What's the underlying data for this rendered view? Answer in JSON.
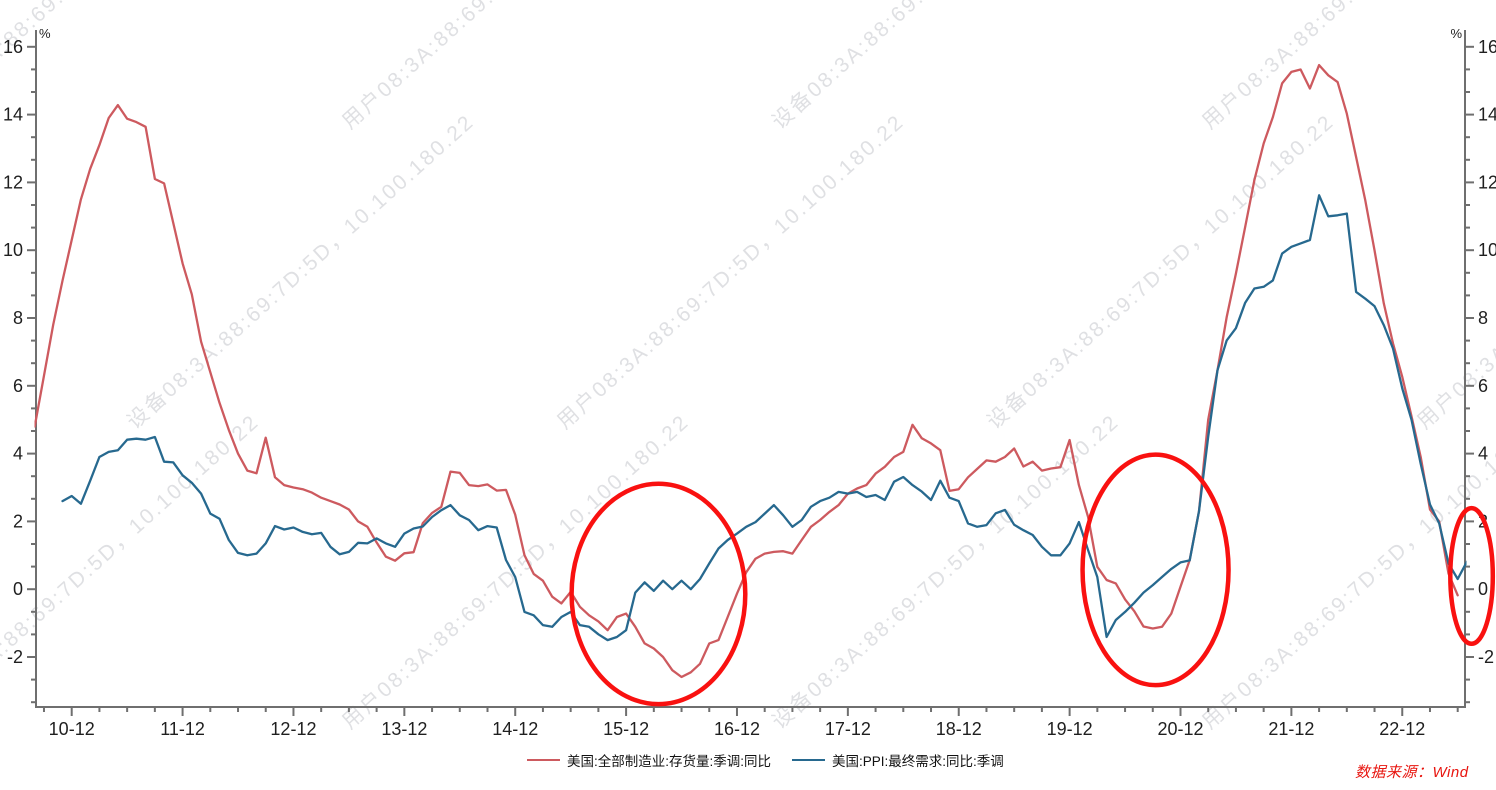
{
  "watermark": {
    "lines": [
      "设备08:3A:88:69:7D:5D，10.100.180.22",
      "用户08:3A:88:69:7D:5D，10.100.180.22"
    ],
    "color": "#b7bac0"
  },
  "source_note": "数据来源：Wind",
  "legend": {
    "items": [
      {
        "label": "美国:全部制造业:存货量:季调:同比",
        "color": "#cd5a5f"
      },
      {
        "label": "美国:PPI:最终需求:同比:季调",
        "color": "#27698f"
      }
    ]
  },
  "chart_data": {
    "type": "line",
    "title": "",
    "unit_label": "%",
    "frequency": "monthly",
    "start_month": "2010-08",
    "x_tick_labels": [
      "10-12",
      "11-12",
      "12-12",
      "13-12",
      "14-12",
      "15-12",
      "16-12",
      "17-12",
      "18-12",
      "19-12",
      "20-12",
      "21-12",
      "22-12"
    ],
    "y_major_ticks": [
      -2,
      0,
      2,
      4,
      6,
      8,
      10,
      12,
      14,
      16
    ],
    "ylim": [
      -3.47,
      16.5
    ],
    "grid": false,
    "legend_position": "bottom-center",
    "axis_color": "#6f6f6f",
    "tick_label_color": "#1f1f1f",
    "annotation_color": "#f91110",
    "series": [
      {
        "name": "美国:全部制造业:存货量:季调:同比",
        "color": "#cd5a5f",
        "values": [
          4.8,
          6.3,
          7.8,
          9.1,
          10.3,
          11.5,
          12.4,
          13.1,
          13.9,
          14.28,
          13.88,
          13.78,
          13.64,
          12.1,
          11.97,
          10.8,
          9.61,
          8.7,
          7.3,
          6.4,
          5.5,
          4.7,
          4.0,
          3.5,
          3.42,
          4.47,
          3.3,
          3.07,
          3.0,
          2.95,
          2.85,
          2.7,
          2.6,
          2.5,
          2.35,
          2.0,
          1.84,
          1.38,
          0.96,
          0.84,
          1.06,
          1.09,
          1.95,
          2.25,
          2.43,
          3.47,
          3.43,
          3.07,
          3.04,
          3.09,
          2.91,
          2.93,
          2.2,
          1.0,
          0.45,
          0.25,
          -0.22,
          -0.42,
          -0.08,
          -0.52,
          -0.77,
          -0.95,
          -1.21,
          -0.82,
          -0.72,
          -1.11,
          -1.6,
          -1.75,
          -2.0,
          -2.39,
          -2.59,
          -2.45,
          -2.2,
          -1.6,
          -1.5,
          -0.82,
          -0.13,
          0.5,
          0.9,
          1.05,
          1.1,
          1.12,
          1.05,
          1.45,
          1.84,
          2.04,
          2.28,
          2.48,
          2.82,
          2.97,
          3.07,
          3.41,
          3.61,
          3.9,
          4.05,
          4.85,
          4.45,
          4.3,
          4.1,
          2.9,
          2.95,
          3.3,
          3.55,
          3.8,
          3.76,
          3.9,
          4.15,
          3.62,
          3.76,
          3.5,
          3.56,
          3.6,
          4.4,
          3.07,
          2.13,
          0.66,
          0.27,
          0.17,
          -0.3,
          -0.65,
          -1.1,
          -1.16,
          -1.11,
          -0.72,
          0.07,
          0.86,
          2.3,
          5.0,
          6.46,
          8.03,
          9.31,
          10.69,
          12.07,
          13.15,
          13.93,
          14.92,
          15.26,
          15.33,
          14.77,
          15.46,
          15.16,
          14.96,
          14.03,
          12.75,
          11.47,
          10.0,
          8.43,
          7.25,
          6.26,
          5.1,
          3.9,
          2.35,
          2.0,
          0.46,
          -0.18,
          null
        ]
      },
      {
        "name": "美国:PPI:最终需求:同比:季调",
        "color": "#27698f",
        "values": [
          null,
          null,
          null,
          2.6,
          2.75,
          2.52,
          3.2,
          3.9,
          4.05,
          4.1,
          4.41,
          4.44,
          4.41,
          4.49,
          3.76,
          3.74,
          3.36,
          3.14,
          2.82,
          2.23,
          2.08,
          1.45,
          1.07,
          1.0,
          1.05,
          1.35,
          1.86,
          1.76,
          1.82,
          1.69,
          1.62,
          1.66,
          1.25,
          1.03,
          1.1,
          1.37,
          1.35,
          1.5,
          1.35,
          1.25,
          1.64,
          1.79,
          1.85,
          2.13,
          2.33,
          2.48,
          2.18,
          2.04,
          1.74,
          1.86,
          1.82,
          0.86,
          0.36,
          -0.67,
          -0.77,
          -1.06,
          -1.11,
          -0.82,
          -0.67,
          -1.06,
          -1.11,
          -1.33,
          -1.5,
          -1.41,
          -1.21,
          -0.1,
          0.2,
          -0.05,
          0.25,
          0.0,
          0.25,
          0.0,
          0.3,
          0.76,
          1.2,
          1.45,
          1.64,
          1.84,
          1.98,
          2.23,
          2.48,
          2.18,
          1.84,
          2.04,
          2.43,
          2.6,
          2.7,
          2.87,
          2.82,
          2.87,
          2.72,
          2.78,
          2.63,
          3.17,
          3.31,
          3.07,
          2.88,
          2.63,
          3.2,
          2.7,
          2.6,
          1.94,
          1.84,
          1.89,
          2.24,
          2.34,
          1.9,
          1.74,
          1.6,
          1.25,
          1.0,
          1.0,
          1.35,
          1.98,
          1.15,
          0.36,
          -1.41,
          -0.91,
          -0.67,
          -0.4,
          -0.1,
          0.12,
          0.36,
          0.6,
          0.79,
          0.85,
          2.3,
          4.5,
          6.46,
          7.34,
          7.7,
          8.45,
          8.87,
          8.92,
          9.11,
          9.9,
          10.1,
          10.2,
          10.3,
          11.62,
          11.0,
          11.03,
          11.08,
          8.77,
          8.57,
          8.35,
          7.79,
          7.1,
          5.92,
          5.0,
          3.7,
          2.5,
          1.94,
          0.76,
          0.3,
          0.81
        ]
      }
    ],
    "annotations": [
      {
        "shape": "ellipse",
        "month_index": 67.5,
        "value": -0.14,
        "rx_months": 9.4,
        "ry_value": 3.25
      },
      {
        "shape": "ellipse",
        "month_index": 121.3,
        "value": 0.57,
        "rx_months": 7.9,
        "ry_value": 3.4
      },
      {
        "shape": "ellipse",
        "month_index": 155.5,
        "value": 0.39,
        "rx_months": 2.3,
        "ry_value": 2.0
      }
    ]
  }
}
